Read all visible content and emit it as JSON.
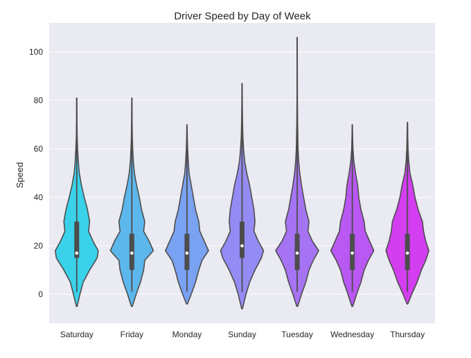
{
  "chart_data": {
    "type": "violin",
    "title": "Driver Speed by Day of Week",
    "xlabel": "",
    "ylabel": "Speed",
    "ylim": [
      -12,
      112
    ],
    "yticks": [
      0,
      20,
      40,
      60,
      80,
      100
    ],
    "grid": true,
    "background": "#eaeaf2",
    "categories": [
      "Saturday",
      "Friday",
      "Monday",
      "Sunday",
      "Tuesday",
      "Wednesday",
      "Thursday"
    ],
    "colors": [
      "#3ad1ea",
      "#5cb7ec",
      "#7aa2f2",
      "#958bf4",
      "#a673f4",
      "#b958f2",
      "#d23ef0"
    ],
    "series": [
      {
        "name": "Saturday",
        "min": 1,
        "q1": 15,
        "median": 17,
        "q3": 30,
        "max": 81,
        "density": [
          [
            -5,
            0.02
          ],
          [
            0,
            0.15
          ],
          [
            5,
            0.3
          ],
          [
            10,
            0.6
          ],
          [
            15,
            0.95
          ],
          [
            18,
            1.0
          ],
          [
            22,
            0.75
          ],
          [
            26,
            0.55
          ],
          [
            30,
            0.6
          ],
          [
            35,
            0.5
          ],
          [
            40,
            0.35
          ],
          [
            45,
            0.22
          ],
          [
            50,
            0.12
          ],
          [
            55,
            0.07
          ],
          [
            60,
            0.04
          ],
          [
            65,
            0.02
          ],
          [
            72,
            0.01
          ],
          [
            81,
            0.005
          ]
        ]
      },
      {
        "name": "Friday",
        "min": 1,
        "q1": 10,
        "median": 17,
        "q3": 25,
        "max": 81,
        "density": [
          [
            -5,
            0.02
          ],
          [
            0,
            0.2
          ],
          [
            5,
            0.4
          ],
          [
            10,
            0.55
          ],
          [
            14,
            0.6
          ],
          [
            18,
            1.0
          ],
          [
            22,
            0.8
          ],
          [
            26,
            0.55
          ],
          [
            30,
            0.6
          ],
          [
            35,
            0.45
          ],
          [
            40,
            0.35
          ],
          [
            45,
            0.22
          ],
          [
            50,
            0.12
          ],
          [
            55,
            0.07
          ],
          [
            60,
            0.04
          ],
          [
            65,
            0.02
          ],
          [
            72,
            0.01
          ],
          [
            81,
            0.005
          ]
        ]
      },
      {
        "name": "Monday",
        "min": 1,
        "q1": 10,
        "median": 17,
        "q3": 25,
        "max": 70,
        "density": [
          [
            -4,
            0.02
          ],
          [
            0,
            0.2
          ],
          [
            5,
            0.4
          ],
          [
            10,
            0.55
          ],
          [
            14,
            0.7
          ],
          [
            18,
            1.0
          ],
          [
            22,
            0.8
          ],
          [
            26,
            0.6
          ],
          [
            30,
            0.55
          ],
          [
            35,
            0.4
          ],
          [
            40,
            0.3
          ],
          [
            45,
            0.2
          ],
          [
            50,
            0.1
          ],
          [
            55,
            0.06
          ],
          [
            60,
            0.03
          ],
          [
            65,
            0.015
          ],
          [
            70,
            0.005
          ]
        ]
      },
      {
        "name": "Sunday",
        "min": 1,
        "q1": 15,
        "median": 20,
        "q3": 30,
        "max": 87,
        "density": [
          [
            -6,
            0.02
          ],
          [
            0,
            0.18
          ],
          [
            5,
            0.35
          ],
          [
            10,
            0.6
          ],
          [
            15,
            0.9
          ],
          [
            18,
            1.0
          ],
          [
            22,
            0.75
          ],
          [
            26,
            0.55
          ],
          [
            30,
            0.6
          ],
          [
            35,
            0.55
          ],
          [
            40,
            0.45
          ],
          [
            45,
            0.35
          ],
          [
            50,
            0.22
          ],
          [
            55,
            0.12
          ],
          [
            60,
            0.07
          ],
          [
            65,
            0.04
          ],
          [
            72,
            0.02
          ],
          [
            80,
            0.01
          ],
          [
            87,
            0.005
          ]
        ]
      },
      {
        "name": "Tuesday",
        "min": 1,
        "q1": 10,
        "median": 17,
        "q3": 25,
        "max": 106,
        "density": [
          [
            -5,
            0.02
          ],
          [
            0,
            0.2
          ],
          [
            5,
            0.4
          ],
          [
            10,
            0.55
          ],
          [
            14,
            0.75
          ],
          [
            18,
            1.0
          ],
          [
            22,
            0.7
          ],
          [
            26,
            0.5
          ],
          [
            30,
            0.55
          ],
          [
            35,
            0.4
          ],
          [
            40,
            0.3
          ],
          [
            45,
            0.2
          ],
          [
            50,
            0.12
          ],
          [
            55,
            0.07
          ],
          [
            60,
            0.04
          ],
          [
            70,
            0.02
          ],
          [
            80,
            0.01
          ],
          [
            90,
            0.006
          ],
          [
            106,
            0.004
          ]
        ]
      },
      {
        "name": "Wednesday",
        "min": 1,
        "q1": 10,
        "median": 17,
        "q3": 25,
        "max": 70,
        "density": [
          [
            -5,
            0.02
          ],
          [
            0,
            0.2
          ],
          [
            5,
            0.4
          ],
          [
            10,
            0.55
          ],
          [
            14,
            0.75
          ],
          [
            18,
            1.0
          ],
          [
            22,
            0.8
          ],
          [
            26,
            0.6
          ],
          [
            30,
            0.55
          ],
          [
            35,
            0.4
          ],
          [
            40,
            0.3
          ],
          [
            45,
            0.25
          ],
          [
            50,
            0.15
          ],
          [
            55,
            0.07
          ],
          [
            60,
            0.03
          ],
          [
            65,
            0.015
          ],
          [
            70,
            0.005
          ]
        ]
      },
      {
        "name": "Thursday",
        "min": 1,
        "q1": 10,
        "median": 17,
        "q3": 25,
        "max": 71,
        "density": [
          [
            -4,
            0.02
          ],
          [
            0,
            0.2
          ],
          [
            5,
            0.45
          ],
          [
            10,
            0.65
          ],
          [
            14,
            0.85
          ],
          [
            18,
            1.0
          ],
          [
            22,
            0.85
          ],
          [
            26,
            0.75
          ],
          [
            30,
            0.7
          ],
          [
            35,
            0.5
          ],
          [
            40,
            0.35
          ],
          [
            45,
            0.25
          ],
          [
            50,
            0.12
          ],
          [
            55,
            0.06
          ],
          [
            60,
            0.03
          ],
          [
            65,
            0.015
          ],
          [
            71,
            0.005
          ]
        ]
      }
    ]
  }
}
